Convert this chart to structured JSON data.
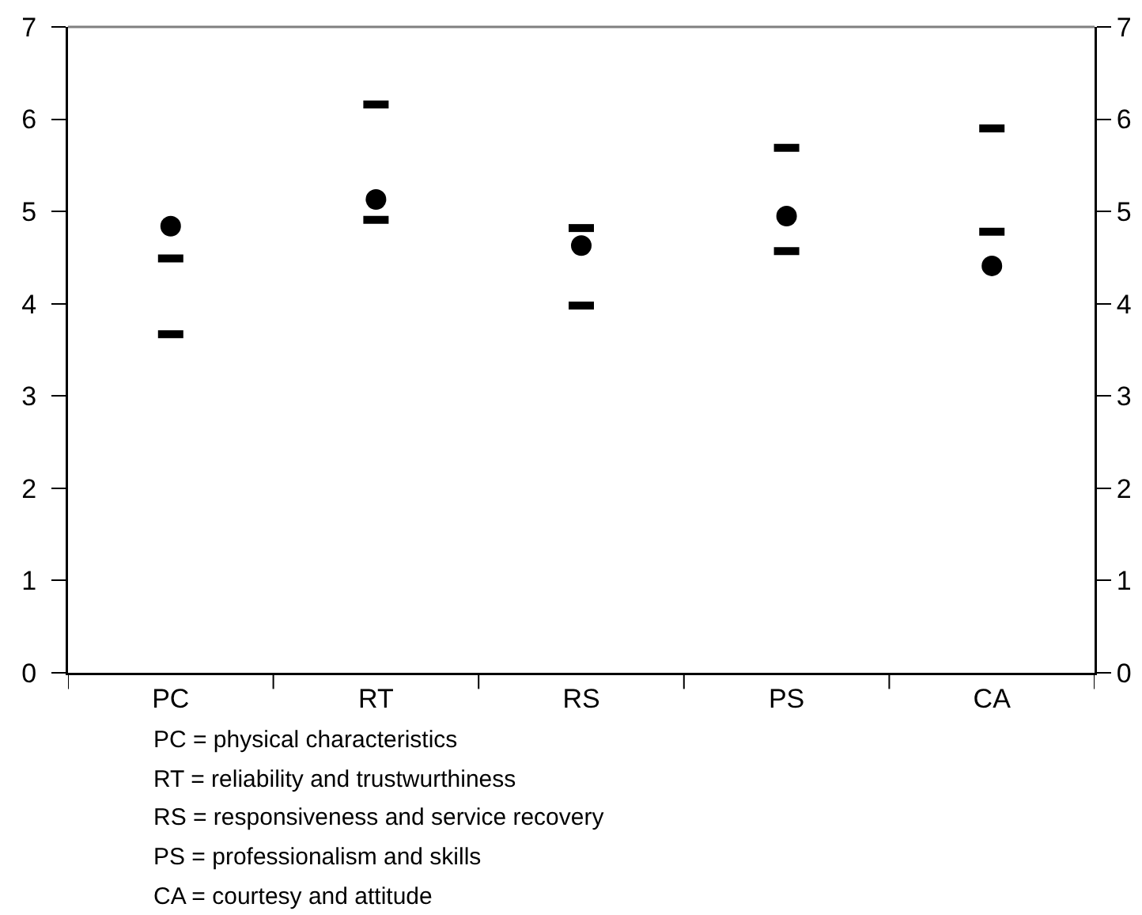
{
  "chart_data": {
    "type": "scatter",
    "categories": [
      "PC",
      "RT",
      "RS",
      "PS",
      "CA"
    ],
    "series": [
      {
        "color": "#000000",
        "marker": "circle",
        "values": [
          4.84,
          5.13,
          4.63,
          4.95,
          4.41
        ]
      },
      {
        "color": "#000000",
        "values": [
          3.67,
          4.91,
          3.98,
          4.57,
          4.78
        ]
      },
      {
        "color": "#000000",
        "values": [
          4.49,
          6.16,
          4.82,
          5.69,
          5.9
        ]
      }
    ],
    "ylim": [
      0,
      7
    ],
    "yticks": [
      0,
      1,
      2,
      3,
      4,
      5,
      6,
      7
    ],
    "y2lim": [
      0,
      7
    ],
    "y2ticks": [
      0,
      1,
      2,
      3,
      4,
      5,
      6,
      7
    ],
    "annotations": [
      "PC = physical characteristics",
      "RT = reliability and trustwurthiness",
      "RS = responsiveness and service recovery",
      "PS = professionalism and skills",
      "CA = courtesy and attitude"
    ]
  }
}
